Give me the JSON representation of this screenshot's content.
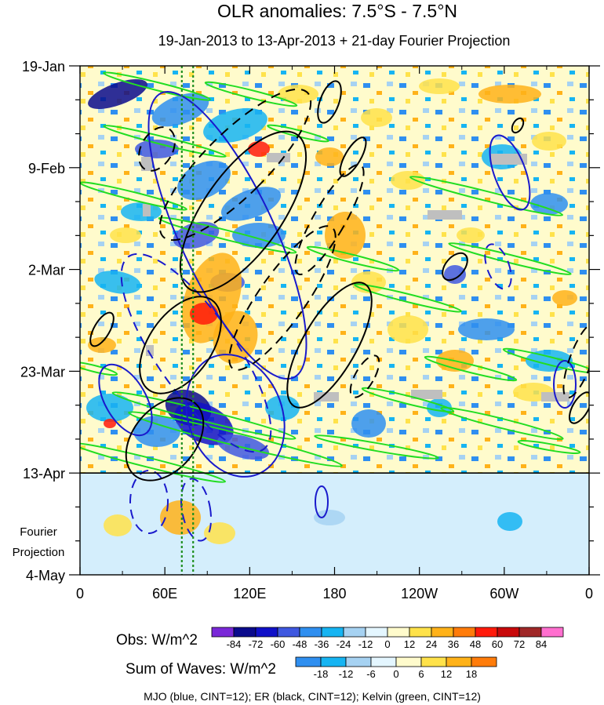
{
  "chart_data": {
    "type": "heatmap",
    "title": "OLR anomalies: 7.5°S - 7.5°N",
    "subtitle": "19-Jan-2013 to 13-Apr-2013 + 21-day Fourier Projection",
    "x_axis": {
      "ticks": [
        "0",
        "60E",
        "120E",
        "180",
        "120W",
        "60W",
        "0"
      ],
      "tick_values": [
        0,
        60,
        120,
        180,
        240,
        300,
        360
      ],
      "range": [
        0,
        360
      ]
    },
    "y_axis": {
      "ticks": [
        "19-Jan",
        "9-Feb",
        "2-Mar",
        "23-Mar",
        "13-Apr",
        "4-May"
      ],
      "range": [
        "2013-01-19",
        "2013-05-04"
      ],
      "orientation": "time increases downward",
      "minor_tick_days": 7
    },
    "projection": {
      "label_line1": "Fourier",
      "label_line2": "Projection",
      "start": "2013-04-13"
    },
    "obs_colorbar": {
      "label": "Obs: W/m^2",
      "levels": [
        "-84",
        "-72",
        "-60",
        "-48",
        "-36",
        "-24",
        "-12",
        "0",
        "12",
        "24",
        "36",
        "48",
        "60",
        "72",
        "84"
      ],
      "colors": [
        "#7a28d8",
        "#0a0a8c",
        "#1010c8",
        "#3f58e0",
        "#2f8ff0",
        "#16b4f2",
        "#a6d2f2",
        "#e4f6ff",
        "#fffbcc",
        "#ffe24a",
        "#ffb219",
        "#ff7c0a",
        "#ff1a0a",
        "#c8090a",
        "#a02828",
        "#ff6fcf"
      ]
    },
    "waves_colorbar": {
      "label": "Sum of Waves: W/m^2",
      "levels": [
        "-18",
        "-12",
        "-6",
        "0",
        "6",
        "12",
        "18"
      ],
      "colors": [
        "#2f8ff0",
        "#16b4f2",
        "#a6d2f2",
        "#e4f6ff",
        "#fffbcc",
        "#ffe24a",
        "#ffb219",
        "#ff7c0a"
      ]
    },
    "reference_lines": [
      {
        "longitude": 72,
        "color": "#1f8f1f",
        "style": "dotted"
      },
      {
        "longitude": 80,
        "color": "#1f8f1f",
        "style": "dotted"
      }
    ],
    "footnote": "MJO (blue, CINT=12); ER (black, CINT=12); Kelvin (green, CINT=12)",
    "series": [
      {
        "name": "MJO",
        "color": "#1a1acc"
      },
      {
        "name": "ER",
        "color": "#000000"
      },
      {
        "name": "Kelvin",
        "color": "#22dd22"
      }
    ]
  }
}
